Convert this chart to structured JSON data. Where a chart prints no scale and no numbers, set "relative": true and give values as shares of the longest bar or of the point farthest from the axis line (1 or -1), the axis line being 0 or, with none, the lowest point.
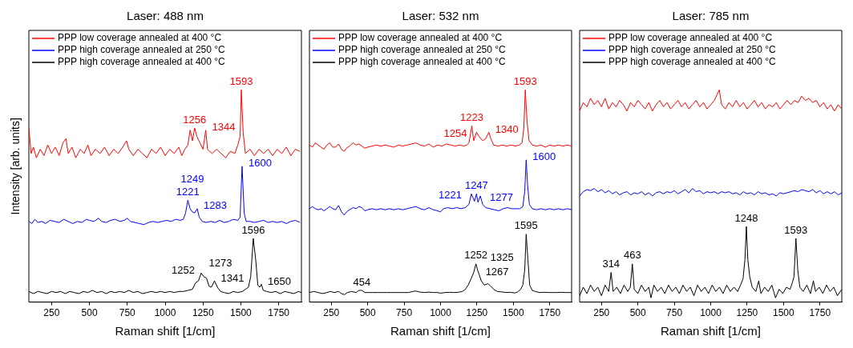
{
  "chart_data": [
    {
      "type": "line",
      "title": "Laser: 488 nm",
      "xlabel": "Raman shift [1/cm]",
      "ylabel": "Intensity [arb. units]",
      "relative": true,
      "xlim": [
        100,
        1900
      ],
      "xticks": [
        250,
        500,
        750,
        1000,
        1250,
        1500,
        1750
      ],
      "legend": "top left",
      "series": [
        {
          "name": "PPP low coverage annealed at 400 °C",
          "color": "#ff0000",
          "x": [
            100,
            115,
            130,
            150,
            175,
            200,
            225,
            250,
            275,
            300,
            325,
            345,
            360,
            385,
            410,
            440,
            465,
            490,
            510,
            540,
            570,
            600,
            630,
            660,
            690,
            720,
            745,
            760,
            790,
            820,
            850,
            880,
            910,
            940,
            970,
            1000,
            1030,
            1060,
            1090,
            1110,
            1130,
            1150,
            1165,
            1180,
            1195,
            1210,
            1230,
            1250,
            1268,
            1280,
            1310,
            1340,
            1370,
            1400,
            1430,
            1460,
            1480,
            1495,
            1503,
            1515,
            1530,
            1560,
            1590,
            1620,
            1650,
            1680,
            1710,
            1740,
            1770,
            1800,
            1830,
            1860,
            1890
          ],
          "values": [
            0.82,
            0.7,
            0.73,
            0.68,
            0.72,
            0.69,
            0.74,
            0.7,
            0.73,
            0.69,
            0.75,
            0.77,
            0.7,
            0.73,
            0.68,
            0.72,
            0.7,
            0.74,
            0.69,
            0.72,
            0.7,
            0.73,
            0.69,
            0.72,
            0.7,
            0.73,
            0.76,
            0.72,
            0.69,
            0.72,
            0.7,
            0.68,
            0.72,
            0.7,
            0.73,
            0.69,
            0.72,
            0.7,
            0.73,
            0.69,
            0.72,
            0.74,
            0.81,
            0.76,
            0.82,
            0.78,
            0.75,
            0.72,
            0.81,
            0.72,
            0.7,
            0.72,
            0.7,
            0.68,
            0.71,
            0.7,
            0.74,
            0.78,
            1.0,
            0.8,
            0.7,
            0.72,
            0.69,
            0.72,
            0.7,
            0.72,
            0.69,
            0.72,
            0.7,
            0.73,
            0.69,
            0.72,
            0.71
          ]
        },
        {
          "name": "PPP high coverage annealed at 250 °C",
          "color": "#0000ff",
          "x": [
            100,
            120,
            140,
            160,
            185,
            210,
            240,
            270,
            300,
            330,
            360,
            390,
            420,
            450,
            480,
            500,
            530,
            560,
            580,
            610,
            640,
            670,
            700,
            730,
            750,
            770,
            800,
            830,
            860,
            890,
            920,
            950,
            980,
            1010,
            1040,
            1070,
            1100,
            1120,
            1135,
            1150,
            1165,
            1180,
            1195,
            1212,
            1225,
            1245,
            1270,
            1300,
            1330,
            1360,
            1390,
            1420,
            1450,
            1480,
            1495,
            1508,
            1522,
            1535,
            1560,
            1590,
            1620,
            1650,
            1680,
            1710,
            1740,
            1770,
            1800,
            1830,
            1860,
            1890
          ],
          "values": [
            0.38,
            0.37,
            0.39,
            0.375,
            0.38,
            0.37,
            0.385,
            0.38,
            0.375,
            0.39,
            0.38,
            0.37,
            0.38,
            0.375,
            0.39,
            0.385,
            0.38,
            0.395,
            0.38,
            0.375,
            0.385,
            0.39,
            0.38,
            0.385,
            0.395,
            0.38,
            0.375,
            0.37,
            0.365,
            0.375,
            0.38,
            0.375,
            0.38,
            0.385,
            0.38,
            0.39,
            0.385,
            0.39,
            0.42,
            0.48,
            0.44,
            0.425,
            0.42,
            0.44,
            0.4,
            0.38,
            0.375,
            0.38,
            0.375,
            0.385,
            0.375,
            0.38,
            0.39,
            0.385,
            0.4,
            0.64,
            0.42,
            0.38,
            0.38,
            0.375,
            0.38,
            0.385,
            0.375,
            0.38,
            0.375,
            0.38,
            0.37,
            0.38,
            0.385,
            0.375
          ]
        },
        {
          "name": "PPP high coverage annealed at 400 °C",
          "color": "#000000",
          "x": [
            100,
            130,
            160,
            190,
            220,
            250,
            280,
            310,
            340,
            370,
            400,
            430,
            460,
            490,
            520,
            550,
            580,
            610,
            640,
            670,
            700,
            730,
            760,
            790,
            820,
            850,
            880,
            910,
            940,
            970,
            1000,
            1030,
            1060,
            1090,
            1120,
            1150,
            1180,
            1200,
            1220,
            1238,
            1255,
            1273,
            1290,
            1305,
            1326,
            1345,
            1365,
            1390,
            1420,
            1450,
            1480,
            1510,
            1530,
            1550,
            1565,
            1582,
            1598,
            1612,
            1625,
            1635,
            1648,
            1670,
            1700,
            1730,
            1760,
            1790,
            1820,
            1850,
            1880,
            1900
          ],
          "values": [
            0.05,
            0.04,
            0.05,
            0.045,
            0.04,
            0.05,
            0.045,
            0.05,
            0.04,
            0.05,
            0.045,
            0.04,
            0.05,
            0.045,
            0.055,
            0.045,
            0.05,
            0.04,
            0.05,
            0.045,
            0.05,
            0.045,
            0.055,
            0.045,
            0.05,
            0.04,
            0.045,
            0.05,
            0.045,
            0.05,
            0.045,
            0.05,
            0.045,
            0.05,
            0.05,
            0.055,
            0.06,
            0.09,
            0.1,
            0.137,
            0.12,
            0.113,
            0.075,
            0.07,
            0.1,
            0.07,
            0.05,
            0.045,
            0.04,
            0.05,
            0.045,
            0.05,
            0.06,
            0.07,
            0.12,
            0.3,
            0.2,
            0.08,
            0.07,
            0.084,
            0.055,
            0.05,
            0.045,
            0.05,
            0.04,
            0.05,
            0.045,
            0.04,
            0.05,
            0.045
          ]
        }
      ],
      "annotations": [
        {
          "text": "1593",
          "x": 1503,
          "y": 1.0
        },
        {
          "text": "1256",
          "x": 1195,
          "y": 0.82
        },
        {
          "text": "1344",
          "x": 1268,
          "y": 0.81
        },
        {
          "text": "1600",
          "x": 1508,
          "y": 0.64
        },
        {
          "text": "1221",
          "x": 1150,
          "y": 0.48
        },
        {
          "text": "1249",
          "x": 1180,
          "y": 0.425
        },
        {
          "text": "1283",
          "x": 1212,
          "y": 0.44
        },
        {
          "text": "1596",
          "x": 1582,
          "y": 0.3
        },
        {
          "text": "1273",
          "x": 1273,
          "y": 0.113
        },
        {
          "text": "1252",
          "x": 1238,
          "y": 0.137
        },
        {
          "text": "1341",
          "x": 1326,
          "y": 0.1
        },
        {
          "text": "1650",
          "x": 1635,
          "y": 0.084
        }
      ]
    },
    {
      "type": "line",
      "title": "Laser: 532 nm",
      "xlabel": "Raman shift [1/cm]",
      "relative": true,
      "xlim": [
        100,
        1900
      ],
      "xticks": [
        250,
        500,
        750,
        1000,
        1250,
        1500,
        1750
      ],
      "legend": "top left",
      "series": [
        {
          "name": "PPP low coverage annealed at 400 °C",
          "color": "#ff0000",
          "x": [
            100,
            120,
            140,
            160,
            180,
            200,
            220,
            240,
            260,
            280,
            300,
            320,
            338,
            355,
            375,
            400,
            420,
            440,
            460,
            480,
            500,
            530,
            560,
            590,
            620,
            650,
            680,
            710,
            740,
            770,
            800,
            830,
            860,
            890,
            920,
            950,
            980,
            1010,
            1040,
            1070,
            1100,
            1130,
            1160,
            1180,
            1195,
            1215,
            1228,
            1247,
            1265,
            1290,
            1310,
            1332,
            1345,
            1365,
            1395,
            1425,
            1455,
            1485,
            1515,
            1540,
            1560,
            1572,
            1582,
            1594,
            1608,
            1630,
            1660,
            1690,
            1720,
            1750,
            1780,
            1810,
            1840,
            1870,
            1900
          ],
          "values": [
            0.74,
            0.73,
            0.75,
            0.74,
            0.73,
            0.72,
            0.74,
            0.75,
            0.73,
            0.73,
            0.745,
            0.72,
            0.71,
            0.725,
            0.735,
            0.75,
            0.74,
            0.745,
            0.735,
            0.725,
            0.73,
            0.735,
            0.74,
            0.735,
            0.74,
            0.735,
            0.73,
            0.74,
            0.735,
            0.74,
            0.745,
            0.75,
            0.74,
            0.735,
            0.745,
            0.73,
            0.74,
            0.735,
            0.745,
            0.74,
            0.735,
            0.74,
            0.735,
            0.74,
            0.75,
            0.83,
            0.76,
            0.8,
            0.78,
            0.76,
            0.77,
            0.8,
            0.77,
            0.74,
            0.735,
            0.74,
            0.735,
            0.74,
            0.735,
            0.74,
            0.75,
            0.82,
            1.0,
            0.85,
            0.76,
            0.74,
            0.735,
            0.74,
            0.73,
            0.74,
            0.735,
            0.74,
            0.735,
            0.74,
            0.735
          ]
        },
        {
          "name": "PPP high coverage annealed at 250 °C",
          "color": "#0000ff",
          "x": [
            100,
            120,
            140,
            160,
            180,
            200,
            220,
            240,
            260,
            280,
            300,
            320,
            338,
            355,
            375,
            400,
            420,
            440,
            460,
            480,
            500,
            530,
            560,
            590,
            620,
            650,
            680,
            710,
            740,
            770,
            800,
            830,
            860,
            890,
            920,
            950,
            980,
            1000,
            1020,
            1050,
            1080,
            1110,
            1140,
            1170,
            1195,
            1212,
            1233,
            1247,
            1257,
            1273,
            1290,
            1310,
            1340,
            1370,
            1400,
            1430,
            1460,
            1490,
            1520,
            1545,
            1565,
            1578,
            1588,
            1598,
            1610,
            1630,
            1660,
            1690,
            1720,
            1750,
            1780,
            1810,
            1840,
            1870,
            1900
          ],
          "values": [
            0.44,
            0.45,
            0.44,
            0.435,
            0.44,
            0.43,
            0.44,
            0.45,
            0.44,
            0.435,
            0.455,
            0.425,
            0.41,
            0.425,
            0.435,
            0.445,
            0.44,
            0.45,
            0.445,
            0.43,
            0.435,
            0.44,
            0.435,
            0.44,
            0.435,
            0.44,
            0.435,
            0.44,
            0.435,
            0.44,
            0.445,
            0.45,
            0.44,
            0.435,
            0.445,
            0.435,
            0.43,
            0.425,
            0.44,
            0.445,
            0.44,
            0.445,
            0.44,
            0.445,
            0.46,
            0.51,
            0.475,
            0.51,
            0.47,
            0.5,
            0.46,
            0.445,
            0.44,
            0.435,
            0.43,
            0.44,
            0.445,
            0.44,
            0.44,
            0.44,
            0.45,
            0.52,
            0.67,
            0.55,
            0.46,
            0.44,
            0.435,
            0.44,
            0.435,
            0.44,
            0.435,
            0.44,
            0.435,
            0.44,
            0.435
          ]
        },
        {
          "name": "PPP high coverage annealed at 400 °C",
          "color": "#000000",
          "x": [
            100,
            130,
            160,
            190,
            220,
            245,
            270,
            300,
            320,
            340,
            360,
            390,
            420,
            440,
            460,
            480,
            510,
            540,
            570,
            600,
            630,
            660,
            690,
            720,
            750,
            780,
            810,
            830,
            860,
            890,
            920,
            950,
            980,
            1000,
            1030,
            1060,
            1090,
            1120,
            1150,
            1170,
            1190,
            1210,
            1228,
            1243,
            1255,
            1265,
            1280,
            1300,
            1326,
            1345,
            1365,
            1390,
            1420,
            1450,
            1480,
            1510,
            1530,
            1550,
            1565,
            1578,
            1588,
            1600,
            1612,
            1630,
            1650,
            1680,
            1710,
            1740,
            1770,
            1800,
            1830,
            1860,
            1900
          ],
          "values": [
            0.045,
            0.05,
            0.045,
            0.04,
            0.045,
            0.05,
            0.045,
            0.05,
            0.04,
            0.035,
            0.045,
            0.05,
            0.045,
            0.055,
            0.055,
            0.045,
            0.045,
            0.045,
            0.045,
            0.045,
            0.045,
            0.045,
            0.045,
            0.045,
            0.045,
            0.045,
            0.05,
            0.052,
            0.047,
            0.045,
            0.047,
            0.045,
            0.045,
            0.042,
            0.045,
            0.046,
            0.045,
            0.046,
            0.05,
            0.06,
            0.08,
            0.11,
            0.14,
            0.18,
            0.15,
            0.13,
            0.1,
            0.08,
            0.087,
            0.075,
            0.06,
            0.05,
            0.048,
            0.045,
            0.046,
            0.043,
            0.048,
            0.06,
            0.08,
            0.15,
            0.32,
            0.2,
            0.08,
            0.055,
            0.05,
            0.045,
            0.046,
            0.045,
            0.045,
            0.045,
            0.046,
            0.045,
            0.045
          ]
        }
      ],
      "annotations": [
        {
          "text": "1593",
          "x": 1582,
          "y": 1.0
        },
        {
          "text": "1254",
          "x": 1247,
          "y": 0.8
        },
        {
          "text": "1223",
          "x": 1215,
          "y": 0.83
        },
        {
          "text": "1340",
          "x": 1332,
          "y": 0.8
        },
        {
          "text": "1600",
          "x": 1588,
          "y": 0.67
        },
        {
          "text": "1247",
          "x": 1247,
          "y": 0.51
        },
        {
          "text": "1221",
          "x": 1212,
          "y": 0.51
        },
        {
          "text": "1277",
          "x": 1273,
          "y": 0.5
        },
        {
          "text": "1595",
          "x": 1588,
          "y": 0.32
        },
        {
          "text": "1252",
          "x": 1243,
          "y": 0.18
        },
        {
          "text": "1267",
          "x": 1265,
          "y": 0.13
        },
        {
          "text": "1325",
          "x": 1326,
          "y": 0.087
        },
        {
          "text": "454",
          "x": 460,
          "y": 0.055
        }
      ]
    },
    {
      "type": "line",
      "title": "Laser: 785 nm",
      "xlabel": "Raman shift [1/cm]",
      "relative": true,
      "xlim": [
        100,
        1900
      ],
      "xticks": [
        250,
        500,
        750,
        1000,
        1250,
        1500,
        1750
      ],
      "legend": "top left",
      "series": [
        {
          "name": "PPP low coverage annealed at 400 °C",
          "color": "#ff0000",
          "x": [
            100,
            125,
            150,
            175,
            200,
            225,
            250,
            275,
            300,
            325,
            350,
            375,
            400,
            425,
            450,
            475,
            500,
            525,
            550,
            575,
            600,
            625,
            650,
            675,
            700,
            725,
            750,
            775,
            800,
            825,
            850,
            875,
            900,
            925,
            950,
            975,
            1000,
            1025,
            1059,
            1075,
            1100,
            1125,
            1150,
            1175,
            1200,
            1225,
            1250,
            1275,
            1300,
            1325,
            1350,
            1375,
            1400,
            1425,
            1450,
            1475,
            1500,
            1525,
            1550,
            1575,
            1600,
            1625,
            1650,
            1675,
            1700,
            1725,
            1750,
            1775,
            1800,
            1825,
            1850,
            1875,
            1900
          ],
          "values": [
            0.9,
            0.94,
            0.92,
            0.96,
            0.93,
            0.95,
            0.92,
            0.96,
            0.91,
            0.94,
            0.92,
            0.95,
            0.93,
            0.9,
            0.94,
            0.92,
            0.95,
            0.93,
            0.91,
            0.94,
            0.9,
            0.93,
            0.95,
            0.92,
            0.94,
            0.91,
            0.93,
            0.95,
            0.92,
            0.94,
            0.91,
            0.93,
            0.95,
            0.92,
            0.94,
            0.91,
            0.93,
            0.95,
            1.0,
            0.93,
            0.91,
            0.94,
            0.92,
            0.95,
            0.92,
            0.94,
            0.91,
            0.93,
            0.95,
            0.92,
            0.94,
            0.91,
            0.93,
            0.92,
            0.94,
            0.91,
            0.93,
            0.95,
            0.93,
            0.95,
            0.94,
            0.97,
            0.95,
            0.96,
            0.94,
            0.95,
            0.92,
            0.94,
            0.91,
            0.93,
            0.9,
            0.93,
            0.91
          ]
        },
        {
          "name": "PPP high coverage annealed at 250 °C",
          "color": "#0000ff",
          "x": [
            100,
            125,
            150,
            175,
            200,
            225,
            250,
            275,
            300,
            325,
            350,
            375,
            400,
            425,
            450,
            475,
            500,
            525,
            550,
            575,
            600,
            625,
            650,
            675,
            700,
            725,
            750,
            775,
            800,
            825,
            850,
            875,
            900,
            925,
            950,
            975,
            1000,
            1025,
            1050,
            1075,
            1100,
            1125,
            1150,
            1175,
            1200,
            1225,
            1250,
            1275,
            1300,
            1325,
            1350,
            1375,
            1400,
            1425,
            1450,
            1475,
            1500,
            1525,
            1550,
            1575,
            1600,
            1625,
            1650,
            1675,
            1700,
            1725,
            1750,
            1775,
            1800,
            1825,
            1850,
            1875,
            1900
          ],
          "values": [
            0.5,
            0.52,
            0.53,
            0.525,
            0.535,
            0.52,
            0.53,
            0.515,
            0.525,
            0.51,
            0.52,
            0.505,
            0.515,
            0.52,
            0.505,
            0.515,
            0.51,
            0.52,
            0.505,
            0.515,
            0.5,
            0.515,
            0.52,
            0.51,
            0.52,
            0.515,
            0.525,
            0.51,
            0.52,
            0.53,
            0.515,
            0.535,
            0.52,
            0.525,
            0.51,
            0.52,
            0.515,
            0.52,
            0.51,
            0.52,
            0.515,
            0.52,
            0.51,
            0.515,
            0.505,
            0.52,
            0.51,
            0.515,
            0.505,
            0.52,
            0.51,
            0.515,
            0.505,
            0.51,
            0.5,
            0.515,
            0.51,
            0.515,
            0.52,
            0.525,
            0.52,
            0.53,
            0.525,
            0.52,
            0.53,
            0.515,
            0.525,
            0.51,
            0.52,
            0.51,
            0.52,
            0.505,
            0.515
          ]
        },
        {
          "name": "PPP high coverage annealed at 400 °C",
          "color": "#000000",
          "x": [
            100,
            125,
            150,
            175,
            200,
            225,
            250,
            275,
            300,
            316,
            330,
            355,
            380,
            405,
            430,
            448,
            462,
            475,
            500,
            525,
            550,
            575,
            590,
            610,
            635,
            660,
            685,
            710,
            735,
            760,
            785,
            810,
            835,
            860,
            885,
            910,
            935,
            960,
            985,
            1010,
            1035,
            1060,
            1085,
            1110,
            1135,
            1160,
            1185,
            1205,
            1222,
            1235,
            1245,
            1255,
            1268,
            1285,
            1310,
            1330,
            1345,
            1370,
            1395,
            1420,
            1445,
            1470,
            1495,
            1520,
            1545,
            1560,
            1572,
            1585,
            1598,
            1612,
            1635,
            1660,
            1685,
            1705,
            1720,
            1745,
            1770,
            1795,
            1820,
            1845,
            1870,
            1900
          ],
          "values": [
            0.03,
            0.07,
            0.04,
            0.08,
            0.05,
            0.07,
            0.03,
            0.08,
            0.05,
            0.14,
            0.05,
            0.07,
            0.04,
            0.08,
            0.05,
            0.07,
            0.18,
            0.06,
            0.04,
            0.08,
            0.05,
            0.07,
            0.02,
            0.08,
            0.05,
            0.07,
            0.04,
            0.08,
            0.05,
            0.07,
            0.04,
            0.08,
            0.05,
            0.07,
            0.03,
            0.08,
            0.05,
            0.07,
            0.04,
            0.08,
            0.05,
            0.07,
            0.04,
            0.08,
            0.05,
            0.07,
            0.05,
            0.08,
            0.11,
            0.2,
            0.356,
            0.2,
            0.12,
            0.07,
            0.05,
            0.1,
            0.04,
            0.07,
            0.05,
            0.08,
            0.02,
            0.06,
            0.04,
            0.07,
            0.06,
            0.09,
            0.12,
            0.3,
            0.15,
            0.07,
            0.05,
            0.08,
            0.04,
            0.1,
            0.05,
            0.07,
            0.04,
            0.08,
            0.05,
            0.07,
            0.03,
            0.06
          ]
        }
      ],
      "annotations": [
        {
          "text": "1248",
          "x": 1245,
          "y": 0.356
        },
        {
          "text": "1593",
          "x": 1585,
          "y": 0.3
        },
        {
          "text": "463",
          "x": 462,
          "y": 0.18
        },
        {
          "text": "314",
          "x": 316,
          "y": 0.14
        }
      ]
    }
  ]
}
